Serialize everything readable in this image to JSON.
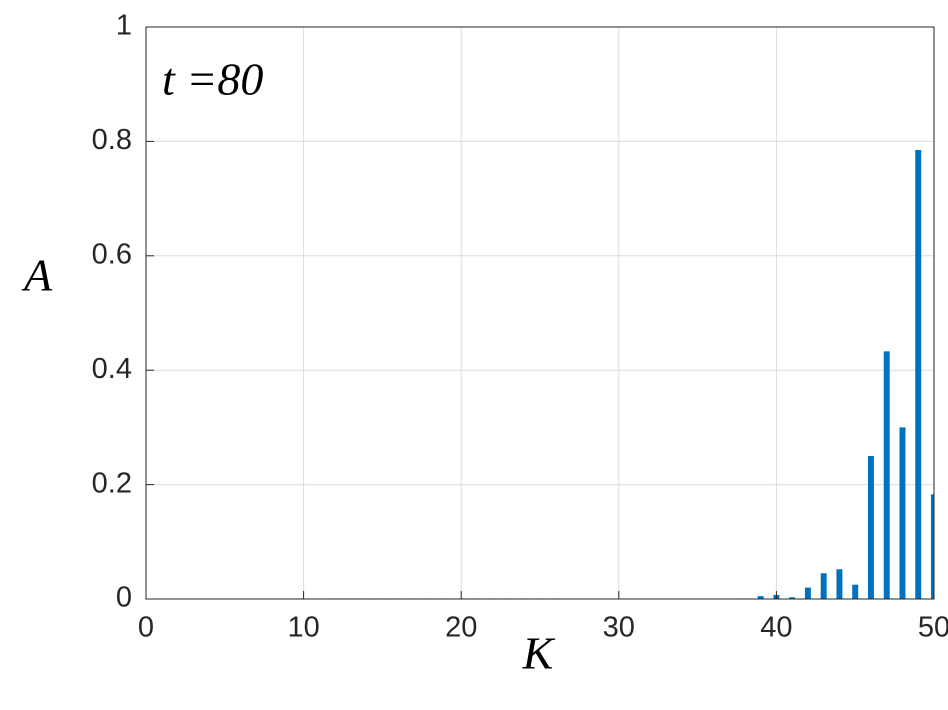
{
  "chart_data": {
    "type": "bar",
    "annotation": "t =80",
    "xlabel": "K",
    "ylabel": "A",
    "x": [
      1,
      2,
      3,
      4,
      5,
      6,
      7,
      8,
      9,
      10,
      11,
      12,
      13,
      14,
      15,
      16,
      17,
      18,
      19,
      20,
      21,
      22,
      23,
      24,
      25,
      26,
      27,
      28,
      29,
      30,
      31,
      32,
      33,
      34,
      35,
      36,
      37,
      38,
      39,
      40,
      41,
      42,
      43,
      44,
      45,
      46,
      47,
      48,
      49,
      50
    ],
    "values": [
      0,
      0,
      0,
      0,
      0,
      0,
      0,
      0,
      0,
      0,
      0,
      0.001,
      0.001,
      0.001,
      0.001,
      0.001,
      0.001,
      0.001,
      0.001,
      0.001,
      0.001,
      0.001,
      0.001,
      0.001,
      0.001,
      0.001,
      0,
      0,
      0,
      0,
      0,
      0,
      0,
      0,
      0,
      0,
      0,
      0.001,
      0.005,
      0.007,
      0.003,
      0.02,
      0.045,
      0.052,
      0.025,
      0.25,
      0.433,
      0.3,
      0.785,
      0.183
    ],
    "color": "#0072bd",
    "xlim": [
      0,
      50
    ],
    "xticks": [
      0,
      10,
      20,
      30,
      40,
      50
    ],
    "ylim": [
      0,
      1
    ],
    "yticks": [
      0,
      0.2,
      0.4,
      0.6,
      0.8,
      1
    ],
    "grid": true
  }
}
